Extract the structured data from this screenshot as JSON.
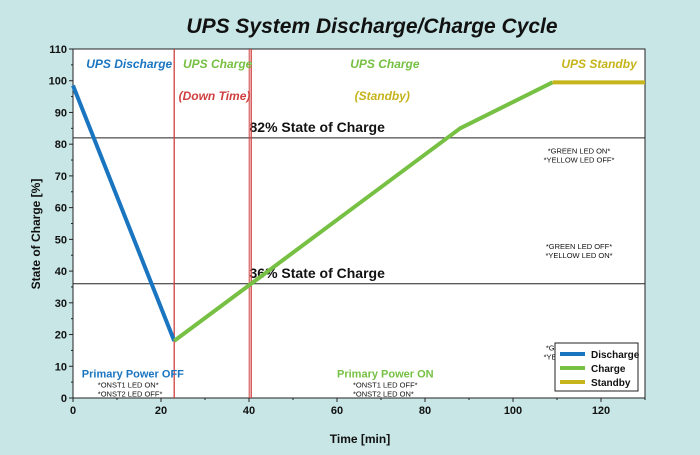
{
  "chart_data": {
    "type": "line",
    "title": "UPS System Discharge/Charge Cycle",
    "xlabel": "Time [min]",
    "ylabel": "State of Charge [%]",
    "xlim": [
      0,
      130
    ],
    "ylim": [
      0,
      110
    ],
    "x_ticks": [
      0,
      20,
      40,
      60,
      80,
      100,
      120
    ],
    "y_ticks": [
      0,
      10,
      20,
      30,
      40,
      50,
      60,
      70,
      80,
      90,
      100,
      110
    ],
    "grid": false,
    "legend_position": "bottom-right",
    "series": [
      {
        "name": "Discharge",
        "color": "#1a75c0",
        "points": [
          [
            0,
            98.5
          ],
          [
            23,
            18
          ]
        ]
      },
      {
        "name": "Charge",
        "color": "#76c043",
        "points": [
          [
            23,
            18
          ],
          [
            88,
            85
          ],
          [
            109,
            99.5
          ]
        ]
      },
      {
        "name": "Standby",
        "color": "#c5b41a",
        "points": [
          [
            109,
            99.5
          ],
          [
            130,
            99.5
          ]
        ]
      }
    ],
    "threshold_lines": [
      {
        "value": 82,
        "label": "82% State of Charge"
      },
      {
        "value": 36,
        "label": "36% State of Charge"
      }
    ],
    "phase_markers": [
      {
        "x": 23,
        "color": "#d04040"
      },
      {
        "x": 40.5,
        "color": "#d04040"
      }
    ],
    "phase_labels": [
      {
        "text": "UPS Discharge",
        "color": "#1a75c0",
        "x": 3,
        "y": 104
      },
      {
        "text": "UPS Charge",
        "color": "#76c043",
        "x": 25,
        "y": 104
      },
      {
        "text": "(Down Time)",
        "color": "#d04040",
        "x": 24,
        "y": 94
      },
      {
        "text": "UPS Charge",
        "color": "#76c043",
        "x": 63,
        "y": 104
      },
      {
        "text": "(Standby)",
        "color": "#c5b41a",
        "x": 64,
        "y": 94
      },
      {
        "text": "UPS Standby",
        "color": "#c5b41a",
        "x": 111,
        "y": 104
      }
    ],
    "led_notes": [
      {
        "lines": [
          "*GREEN LED ON*",
          "*YELLOW LED OFF*"
        ],
        "x": 115,
        "y": 77
      },
      {
        "lines": [
          "*GREEN LED OFF*",
          "*YELLOW LED ON*"
        ],
        "x": 115,
        "y": 47
      },
      {
        "lines": [
          "*GREEN LED OFF*",
          "*YELLOW LED OFF*"
        ],
        "x": 115,
        "y": 15
      }
    ],
    "power_notes": [
      {
        "title": "Primary Power OFF",
        "lines": [
          "*ONST1 LED ON*",
          "*ONST2 LED OFF*"
        ],
        "color": "#1a75c0",
        "x": 2,
        "y": 9
      },
      {
        "title": "Primary Power ON",
        "lines": [
          "*ONST1 LED OFF*",
          "*ONST2 LED ON*"
        ],
        "color": "#76c043",
        "x": 60,
        "y": 9
      }
    ]
  }
}
